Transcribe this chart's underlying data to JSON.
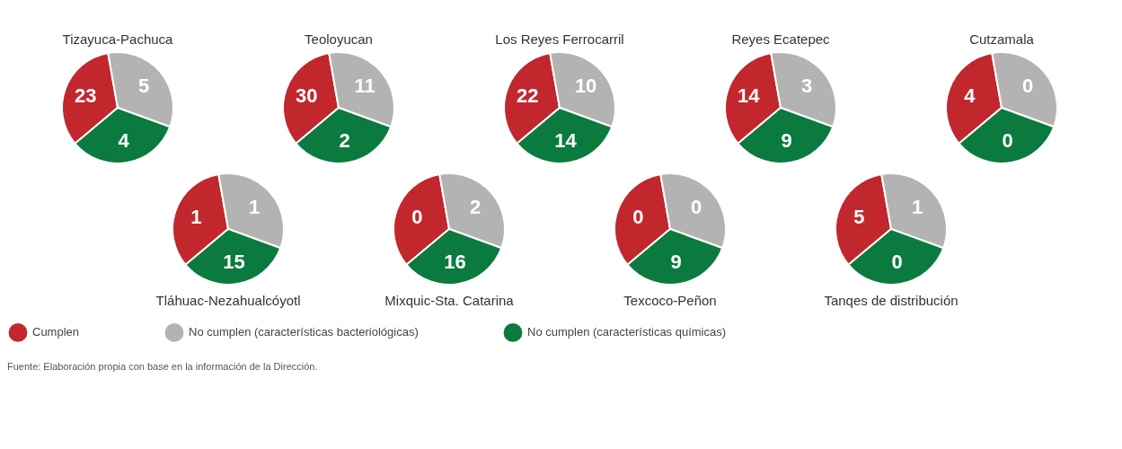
{
  "chart_data": {
    "type": "other",
    "categories": [
      "Tizayuca-Pachuca",
      "Teoloyucan",
      "Los Reyes Ferrocarril",
      "Reyes Ecatepec",
      "Cutzamala",
      "Tláhuac-Nezahualcóyotl",
      "Mixquic-Sta. Catarina",
      "Texcoco-Peñon",
      "Tanqes de distribución"
    ],
    "series": [
      {
        "name": "Cumplen",
        "color": "#c1272d",
        "values": [
          23,
          30,
          22,
          14,
          4,
          1,
          0,
          0,
          5
        ]
      },
      {
        "name": "No cumplen (características bacteriológicas)",
        "color": "#b3b3b3",
        "values": [
          5,
          11,
          10,
          3,
          0,
          1,
          2,
          0,
          1
        ]
      },
      {
        "name": "No cumplen (características químicas)",
        "color": "#0b7a3e",
        "values": [
          4,
          2,
          14,
          9,
          0,
          15,
          16,
          9,
          0
        ]
      }
    ],
    "data_labels": true,
    "legend": "bottom",
    "annotations": [
      "Fuente:  Elaboración propia con base en la información de la Dirección."
    ]
  }
}
